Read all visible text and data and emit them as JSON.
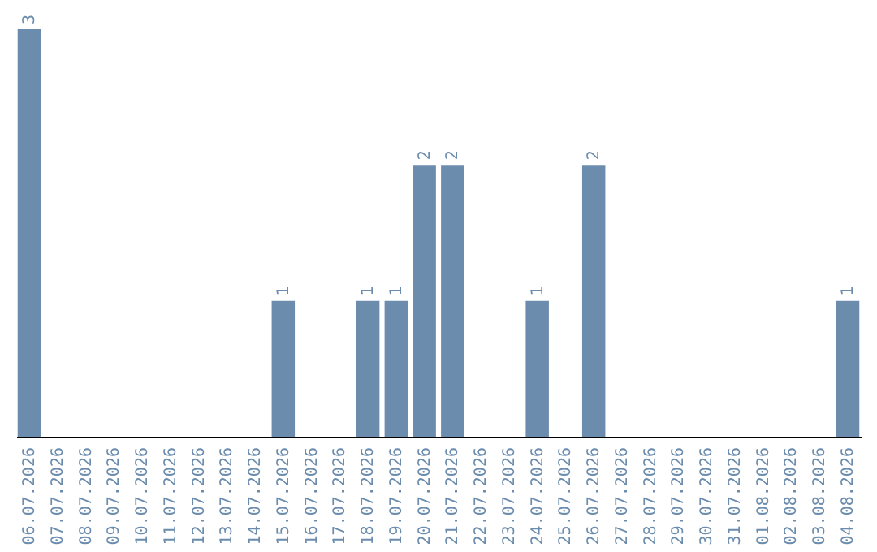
{
  "chart_data": {
    "type": "bar",
    "categories": [
      "06.07.2026",
      "07.07.2026",
      "08.07.2026",
      "09.07.2026",
      "10.07.2026",
      "11.07.2026",
      "12.07.2026",
      "13.07.2026",
      "14.07.2026",
      "15.07.2026",
      "16.07.2026",
      "17.07.2026",
      "18.07.2026",
      "19.07.2026",
      "20.07.2026",
      "21.07.2026",
      "22.07.2026",
      "23.07.2026",
      "24.07.2026",
      "25.07.2026",
      "26.07.2026",
      "27.07.2026",
      "28.07.2026",
      "29.07.2026",
      "30.07.2026",
      "31.07.2026",
      "01.08.2026",
      "02.08.2026",
      "03.08.2026",
      "04.08.2026"
    ],
    "values": [
      3,
      0,
      0,
      0,
      0,
      0,
      0,
      0,
      0,
      1,
      0,
      0,
      1,
      1,
      2,
      2,
      0,
      0,
      1,
      0,
      2,
      0,
      0,
      0,
      0,
      0,
      0,
      0,
      0,
      1
    ],
    "value_labels": [
      "3",
      null,
      null,
      null,
      null,
      null,
      null,
      null,
      null,
      "1",
      null,
      null,
      "1",
      "1",
      "2",
      "2",
      null,
      null,
      "1",
      null,
      "2",
      null,
      null,
      null,
      null,
      null,
      null,
      null,
      null,
      "1"
    ],
    "color": "#6b8cad",
    "ylim": [
      0,
      3
    ],
    "tick_labels": "x",
    "grid": false
  }
}
